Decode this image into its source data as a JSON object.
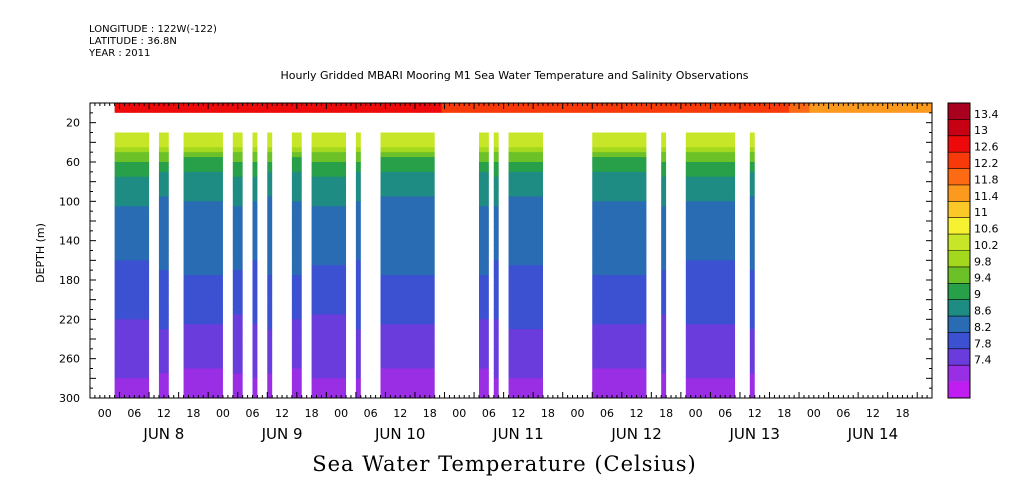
{
  "meta": {
    "longitude": "LONGITUDE : 122W(-122)",
    "latitude": "LATITUDE : 36.8N",
    "year": "YEAR : 2011"
  },
  "chart_data": {
    "type": "heatmap",
    "title": "Hourly Gridded MBARI Mooring M1 Sea Water Temperature and Salinity Observations",
    "bottom_title": "Sea Water Temperature (Celsius)",
    "ylabel": "DEPTH (m)",
    "xlabel": "",
    "ylim": [
      300,
      0
    ],
    "y_ticks": [
      20,
      60,
      100,
      140,
      180,
      220,
      260,
      300
    ],
    "x_range_hours": [
      0,
      168
    ],
    "x_hour_ticks": [
      "00",
      "06",
      "12",
      "18",
      "00",
      "06",
      "12",
      "18",
      "00",
      "06",
      "12",
      "18",
      "00",
      "06",
      "12",
      "18",
      "00",
      "06",
      "12",
      "18",
      "00",
      "06",
      "12",
      "18",
      "00",
      "06",
      "12",
      "18"
    ],
    "x_day_labels": [
      "JUN  8",
      "JUN  9",
      "JUN 10",
      "JUN 11",
      "JUN 12",
      "JUN 13",
      "JUN 14"
    ],
    "colorbar": {
      "levels": [
        13.4,
        13,
        12.6,
        12.2,
        11.8,
        11.4,
        11,
        10.6,
        10.2,
        9.8,
        9.4,
        9,
        8.6,
        8.2,
        7.8,
        7.4
      ],
      "colors": [
        "#a8001e",
        "#c80014",
        "#ee0a0a",
        "#f83a0a",
        "#fc6a14",
        "#fc9a1e",
        "#fcc828",
        "#f6f232",
        "#c8e628",
        "#a4d81e",
        "#6cc028",
        "#28a04a",
        "#1e8c82",
        "#2a6cb4",
        "#3c50d2",
        "#6a3cdc",
        "#9a2ee4",
        "#c01ef0"
      ]
    },
    "surface_band": {
      "depth_range": [
        0,
        10
      ],
      "temperature": [
        12.4,
        13.2
      ]
    },
    "data_segments_hours": [
      [
        2,
        9
      ],
      [
        11,
        13
      ],
      [
        16,
        24
      ],
      [
        26,
        28
      ],
      [
        30,
        31
      ],
      [
        33,
        34
      ],
      [
        38,
        40
      ],
      [
        42,
        49
      ],
      [
        51,
        52
      ],
      [
        56,
        67
      ],
      [
        76,
        78
      ],
      [
        79,
        80
      ],
      [
        82,
        89
      ],
      [
        99,
        110
      ],
      [
        113,
        114
      ],
      [
        118,
        128
      ],
      [
        131,
        132
      ]
    ],
    "profile": {
      "depths": [
        40,
        60,
        80,
        100,
        130,
        170,
        210,
        250,
        300
      ],
      "temperatures": [
        10.8,
        9.7,
        9.2,
        9.0,
        8.8,
        8.6,
        8.3,
        8.0,
        7.6
      ]
    }
  }
}
